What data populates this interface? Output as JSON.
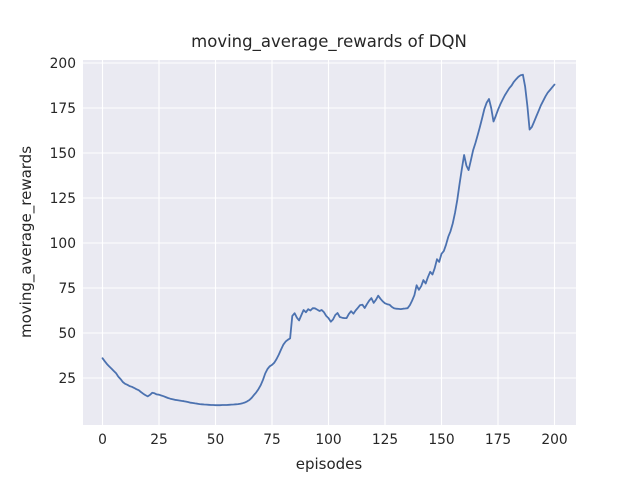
{
  "colors": {
    "figure_bg": "#ffffff",
    "axes_bg": "#eaeaf2",
    "grid": "#ffffff",
    "line": "#4c72b0",
    "text": "#262626"
  },
  "chart_data": {
    "type": "line",
    "title": "moving_average_rewards of DQN",
    "xlabel": "episodes",
    "ylabel": "moving_average_rewards",
    "x_ticks": [
      0,
      25,
      50,
      75,
      100,
      125,
      150,
      175,
      200
    ],
    "y_ticks": [
      25,
      50,
      75,
      100,
      125,
      150,
      175,
      200
    ],
    "xlim": [
      -9,
      209.5
    ],
    "ylim": [
      -1,
      202
    ],
    "grid": true,
    "legend_position": "none",
    "series": [
      {
        "name": "moving_average_rewards",
        "color": "#4c72b0",
        "x_start": 0,
        "x_step": 1,
        "values": [
          36.0,
          34.3,
          32.7,
          31.4,
          30.2,
          28.9,
          27.6,
          25.8,
          24.4,
          22.8,
          21.8,
          21.2,
          20.5,
          20.1,
          19.5,
          18.8,
          18.2,
          17.2,
          16.3,
          15.5,
          14.8,
          15.6,
          16.8,
          16.5,
          15.9,
          15.7,
          15.3,
          14.9,
          14.4,
          13.9,
          13.5,
          13.2,
          12.9,
          12.7,
          12.5,
          12.3,
          12.1,
          11.9,
          11.6,
          11.3,
          11.1,
          10.9,
          10.7,
          10.5,
          10.4,
          10.3,
          10.2,
          10.1,
          10.0,
          10.0,
          9.9,
          9.9,
          9.9,
          10.0,
          10.0,
          10.0,
          10.1,
          10.2,
          10.3,
          10.4,
          10.5,
          10.7,
          11.0,
          11.4,
          12.0,
          12.8,
          14.0,
          15.5,
          17.0,
          18.8,
          21.0,
          24.0,
          27.5,
          30.0,
          31.5,
          32.3,
          33.5,
          35.5,
          38.0,
          40.8,
          43.5,
          45.2,
          46.2,
          47.0,
          59.5,
          61.0,
          58.5,
          57.0,
          60.0,
          62.8,
          61.5,
          63.2,
          62.5,
          63.8,
          63.7,
          63.0,
          62.2,
          62.8,
          61.5,
          59.5,
          58.3,
          56.3,
          57.5,
          60.0,
          61.1,
          58.9,
          58.5,
          58.3,
          58.3,
          60.5,
          62.1,
          60.7,
          62.5,
          64.0,
          65.5,
          65.7,
          63.9,
          66.0,
          68.0,
          69.4,
          66.7,
          68.5,
          70.7,
          69.0,
          67.6,
          66.5,
          66.0,
          65.7,
          64.5,
          63.7,
          63.5,
          63.4,
          63.3,
          63.5,
          63.6,
          63.8,
          65.5,
          68.0,
          71.0,
          76.5,
          74.0,
          76.0,
          79.4,
          77.5,
          81.0,
          84.0,
          82.5,
          86.0,
          91.0,
          89.5,
          94.0,
          95.5,
          99.0,
          103.5,
          106.5,
          111.0,
          117.0,
          124.0,
          133.0,
          141.0,
          148.9,
          143.0,
          140.5,
          146.0,
          151.5,
          155.5,
          160.0,
          164.5,
          169.5,
          174.5,
          178.0,
          180.0,
          175.0,
          167.5,
          170.5,
          174.0,
          177.0,
          179.5,
          182.0,
          184.0,
          186.0,
          187.5,
          189.5,
          191.0,
          192.3,
          193.2,
          193.5,
          187.0,
          176.0,
          163.0,
          164.5,
          167.5,
          170.5,
          173.5,
          176.5,
          179.0,
          181.5,
          183.5,
          185.0,
          186.5,
          188.0
        ]
      }
    ]
  }
}
